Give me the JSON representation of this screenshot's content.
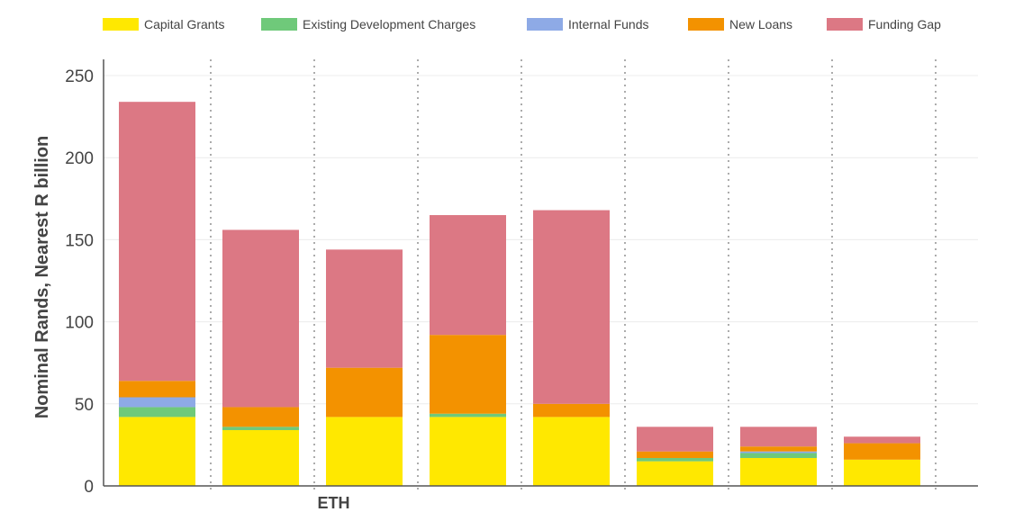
{
  "chart_data": {
    "type": "bar",
    "stacked": true,
    "title": "",
    "ylabel": "Nominal Rands, Nearest R billion",
    "xlabel": "",
    "category_labels": [
      "",
      "",
      "ETH",
      "",
      "",
      "",
      "",
      ""
    ],
    "ylim": [
      0,
      250
    ],
    "yticks": [
      0,
      50,
      100,
      150,
      200,
      250
    ],
    "grid": true,
    "legend_position": "top",
    "series": [
      {
        "name": "Capital Grants",
        "color": "#ffe800",
        "values": [
          42,
          34,
          42,
          42,
          42,
          15,
          17,
          16
        ]
      },
      {
        "name": "Existing Development Charges",
        "color": "#6fc97a",
        "values": [
          6,
          2,
          0,
          2,
          0,
          2,
          3,
          0
        ]
      },
      {
        "name": "Internal Funds",
        "color": "#8eaae6",
        "values": [
          6,
          0,
          0,
          0,
          0,
          0,
          1,
          0
        ]
      },
      {
        "name": "New Loans",
        "color": "#f39200",
        "values": [
          10,
          12,
          30,
          48,
          8,
          4,
          3,
          10
        ]
      },
      {
        "name": "Funding Gap",
        "color": "#dc7884",
        "values": [
          170,
          108,
          72,
          73,
          118,
          15,
          12,
          4
        ]
      }
    ]
  }
}
